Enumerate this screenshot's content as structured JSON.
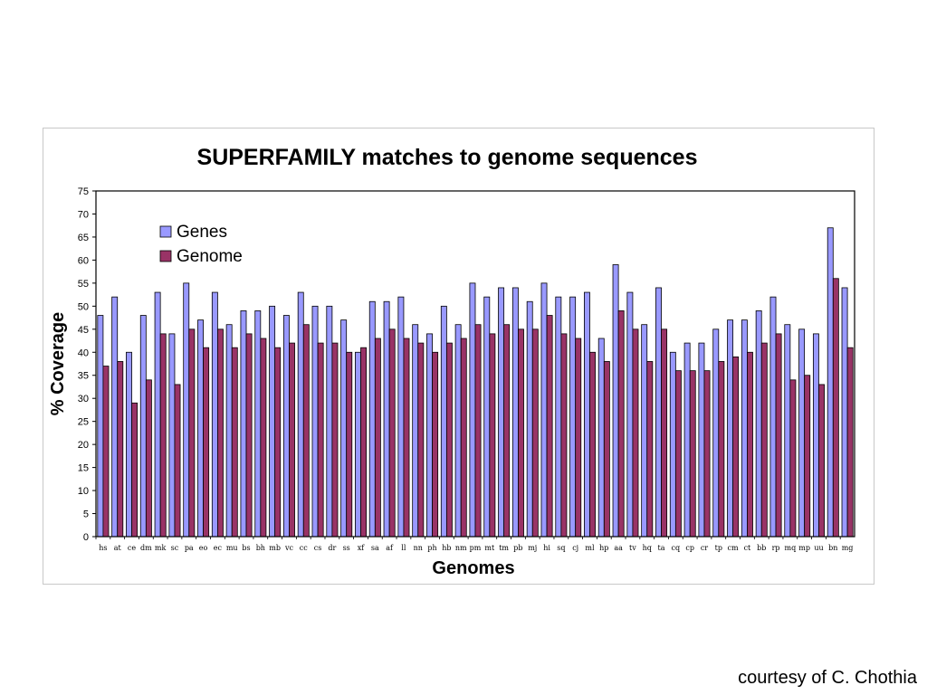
{
  "chart_data": {
    "type": "bar",
    "title": "SUPERFAMILY matches to genome sequences",
    "xlabel": "Genomes",
    "ylabel": "% Coverage",
    "ylim": [
      0,
      75
    ],
    "yticks": [
      0,
      5,
      10,
      15,
      20,
      25,
      30,
      35,
      40,
      45,
      50,
      55,
      60,
      65,
      70,
      75
    ],
    "grid": false,
    "legend_position": "top-left",
    "categories": [
      "hs",
      "at",
      "ce",
      "dm",
      "mk",
      "sc",
      "pa",
      "eo",
      "ec",
      "mu",
      "bs",
      "bh",
      "mb",
      "vc",
      "cc",
      "cs",
      "dr",
      "ss",
      "xf",
      "sa",
      "af",
      "ll",
      "nn",
      "ph",
      "hb",
      "nm",
      "pm",
      "mt",
      "tm",
      "pb",
      "mj",
      "hi",
      "sq",
      "cj",
      "ml",
      "hp",
      "aa",
      "tv",
      "hq",
      "ta",
      "cq",
      "cp",
      "cr",
      "tp",
      "cm",
      "ct",
      "bb",
      "rp",
      "mq",
      "mp",
      "uu",
      "bn",
      "mg"
    ],
    "series": [
      {
        "name": "Genes",
        "color": "#9999ff",
        "values": [
          48,
          52,
          40,
          48,
          53,
          44,
          55,
          47,
          53,
          46,
          49,
          49,
          50,
          48,
          53,
          50,
          50,
          47,
          40,
          51,
          51,
          52,
          46,
          44,
          50,
          46,
          55,
          52,
          54,
          54,
          51,
          55,
          52,
          52,
          53,
          43,
          59,
          53,
          46,
          54,
          40,
          42,
          42,
          45,
          47,
          47,
          49,
          52,
          46,
          45,
          44,
          67,
          54
        ]
      },
      {
        "name": "Genome",
        "color": "#993366",
        "values": [
          37,
          38,
          29,
          34,
          44,
          33,
          45,
          41,
          45,
          41,
          44,
          43,
          41,
          42,
          46,
          42,
          42,
          40,
          41,
          43,
          45,
          43,
          42,
          40,
          42,
          43,
          46,
          44,
          46,
          45,
          45,
          48,
          44,
          43,
          40,
          38,
          49,
          45,
          38,
          45,
          36,
          36,
          36,
          38,
          39,
          40,
          42,
          44,
          34,
          35,
          33,
          56,
          41
        ]
      }
    ]
  },
  "credit": "courtesy of C. Chothia"
}
